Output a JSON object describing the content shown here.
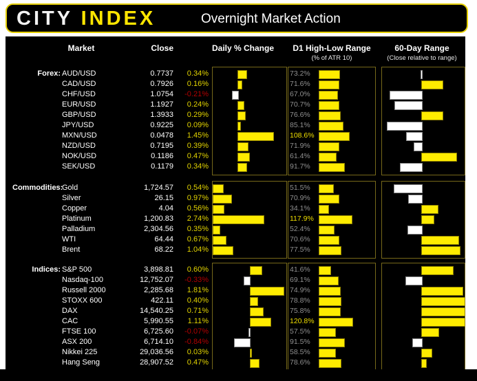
{
  "header": {
    "logo_city": "CITY",
    "logo_index": "INDEX",
    "title": "Overnight Market Action"
  },
  "columns": {
    "market": "Market",
    "close": "Close",
    "daily": "Daily % Change",
    "d1": "D1 High-Low Range",
    "d1_sub": "(% of ATR 10)",
    "range60": "60-Day Range",
    "range60_sub": "(Close relative to range)"
  },
  "colors": {
    "background": "#000000",
    "accent_yellow": "#ffec00",
    "bar_white": "#ffffff",
    "positive_text": "#e3d400",
    "negative_text": "#b30000",
    "muted_grey": "#8f8f8f",
    "panel_border": "#77691a",
    "header_border": "#e6d000"
  },
  "chart_data": {
    "type": "bar",
    "d1_axis": [
      0,
      200
    ],
    "range60_axis": [
      -1,
      1
    ],
    "sections": [
      {
        "label": "Forex:",
        "daily_axis": [
          -1,
          2
        ],
        "rows": [
          {
            "market": "AUD/USD",
            "close": "0.7737",
            "daily": 0.34,
            "daily_label": "0.34%",
            "d1": 73.2,
            "d1_label": "73.2%",
            "r60": -0.02
          },
          {
            "market": "CAD/USD",
            "close": "0.7926",
            "daily": 0.16,
            "daily_label": "0.16%",
            "d1": 71.6,
            "d1_label": "71.6%",
            "r60": 0.48
          },
          {
            "market": "CHF/USD",
            "close": "1.0754",
            "daily": -0.21,
            "daily_label": "-0.21%",
            "d1": 67.0,
            "d1_label": "67.0%",
            "r60": -0.74
          },
          {
            "market": "EUR/USD",
            "close": "1.1927",
            "daily": 0.24,
            "daily_label": "0.24%",
            "d1": 70.7,
            "d1_label": "70.7%",
            "r60": -0.63
          },
          {
            "market": "GBP/USD",
            "close": "1.3933",
            "daily": 0.29,
            "daily_label": "0.29%",
            "d1": 76.6,
            "d1_label": "76.6%",
            "r60": 0.48
          },
          {
            "market": "JPY/USD",
            "close": "0.9225",
            "daily": 0.09,
            "daily_label": "0.09%",
            "d1": 85.1,
            "d1_label": "85.1%",
            "r60": -0.81
          },
          {
            "market": "MXN/USD",
            "close": "0.0478",
            "daily": 1.45,
            "daily_label": "1.45%",
            "d1": 108.6,
            "d1_label": "108.6%",
            "r60": -0.35
          },
          {
            "market": "NZD/USD",
            "close": "0.7195",
            "daily": 0.39,
            "daily_label": "0.39%",
            "d1": 71.9,
            "d1_label": "71.9%",
            "r60": -0.18
          },
          {
            "market": "NOK/USD",
            "close": "0.1186",
            "daily": 0.47,
            "daily_label": "0.47%",
            "d1": 61.4,
            "d1_label": "61.4%",
            "r60": 0.81
          },
          {
            "market": "SEK/USD",
            "close": "0.1179",
            "daily": 0.34,
            "daily_label": "0.34%",
            "d1": 91.7,
            "d1_label": "91.7%",
            "r60": -0.5
          }
        ]
      },
      {
        "label": "Commodities:",
        "daily_axis": [
          0,
          4
        ],
        "rows": [
          {
            "market": "Gold",
            "close": "1,724.57",
            "daily": 0.54,
            "daily_label": "0.54%",
            "d1": 51.5,
            "d1_label": "51.5%",
            "r60": -0.65
          },
          {
            "market": "Silver",
            "close": "26.15",
            "daily": 0.97,
            "daily_label": "0.97%",
            "d1": 70.9,
            "d1_label": "70.9%",
            "r60": -0.31
          },
          {
            "market": "Copper",
            "close": "4.04",
            "daily": 0.56,
            "daily_label": "0.56%",
            "d1": 34.1,
            "d1_label": "34.1%",
            "r60": 0.37
          },
          {
            "market": "Platinum",
            "close": "1,200.83",
            "daily": 2.74,
            "daily_label": "2.74%",
            "d1": 117.9,
            "d1_label": "117.9%",
            "r60": 0.27
          },
          {
            "market": "Palladium",
            "close": "2,304.56",
            "daily": 0.35,
            "daily_label": "0.35%",
            "d1": 52.4,
            "d1_label": "52.4%",
            "r60": -0.32
          },
          {
            "market": "WTI",
            "close": "64.44",
            "daily": 0.67,
            "daily_label": "0.67%",
            "d1": 70.6,
            "d1_label": "70.6%",
            "r60": 0.85
          },
          {
            "market": "Brent",
            "close": "68.22",
            "daily": 1.04,
            "daily_label": "1.04%",
            "d1": 77.5,
            "d1_label": "77.5%",
            "r60": 0.89
          }
        ]
      },
      {
        "label": "Indices:",
        "daily_axis": [
          -2,
          2
        ],
        "rows": [
          {
            "market": "S&P 500",
            "close": "3,898.81",
            "daily": 0.6,
            "daily_label": "0.60%",
            "d1": 41.6,
            "d1_label": "41.6%",
            "r60": 0.73
          },
          {
            "market": "Nasdaq-100",
            "close": "12,752.07",
            "daily": -0.33,
            "daily_label": "-0.33%",
            "d1": 69.1,
            "d1_label": "69.1%",
            "r60": -0.37
          },
          {
            "market": "Russell 2000",
            "close": "2,285.68",
            "daily": 1.81,
            "daily_label": "1.81%",
            "d1": 74.9,
            "d1_label": "74.9%",
            "r60": 0.95
          },
          {
            "market": "STOXX 600",
            "close": "422.11",
            "daily": 0.4,
            "daily_label": "0.40%",
            "d1": 78.8,
            "d1_label": "78.8%",
            "r60": 1.0
          },
          {
            "market": "DAX",
            "close": "14,540.25",
            "daily": 0.71,
            "daily_label": "0.71%",
            "d1": 75.8,
            "d1_label": "75.8%",
            "r60": 1.0
          },
          {
            "market": "CAC",
            "close": "5,990.55",
            "daily": 1.11,
            "daily_label": "1.11%",
            "d1": 120.8,
            "d1_label": "120.8%",
            "r60": 1.0
          },
          {
            "market": "FTSE 100",
            "close": "6,725.60",
            "daily": -0.07,
            "daily_label": "-0.07%",
            "d1": 57.5,
            "d1_label": "57.5%",
            "r60": 0.39
          },
          {
            "market": "ASX 200",
            "close": "6,714.10",
            "daily": -0.84,
            "daily_label": "-0.84%",
            "d1": 91.5,
            "d1_label": "91.5%",
            "r60": -0.21
          },
          {
            "market": "Nikkei 225",
            "close": "29,036.56",
            "daily": 0.03,
            "daily_label": "0.03%",
            "d1": 58.5,
            "d1_label": "58.5%",
            "r60": 0.23
          },
          {
            "market": "Hang Seng",
            "close": "28,907.52",
            "daily": 0.47,
            "daily_label": "0.47%",
            "d1": 78.6,
            "d1_label": "78.6%",
            "r60": 0.1
          }
        ]
      }
    ]
  }
}
